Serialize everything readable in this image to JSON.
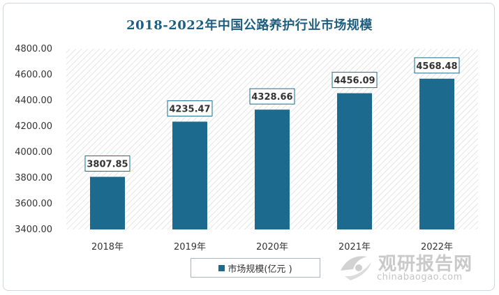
{
  "chart_data": {
    "type": "bar",
    "title": "2018-2022年中国公路养护行业市场规模",
    "categories": [
      "2018年",
      "2019年",
      "2020年",
      "2021年",
      "2022年"
    ],
    "series": [
      {
        "name": "市场规模(亿元 )",
        "values": [
          3807.85,
          4235.47,
          4328.66,
          4456.09,
          4568.48
        ]
      }
    ],
    "data_labels": [
      "3807.85",
      "4235.47",
      "4328.66",
      "4456.09",
      "4568.48"
    ],
    "ylim": [
      3400,
      4800
    ],
    "yticks": [
      3400,
      3600,
      3800,
      4000,
      4200,
      4400,
      4600,
      4800
    ],
    "ytick_labels": [
      "3400.00",
      "3600.00",
      "3800.00",
      "4000.00",
      "4200.00",
      "4400.00",
      "4600.00",
      "4800.00"
    ],
    "xlabel": "",
    "ylabel": "",
    "legend_position": "bottom",
    "colors": {
      "bar": "#1c6b8e",
      "title": "#1c5d80",
      "label_border": "#1c6b8e"
    }
  },
  "watermark": {
    "brand": "观研报告网",
    "site": "chinabaogao.com"
  }
}
